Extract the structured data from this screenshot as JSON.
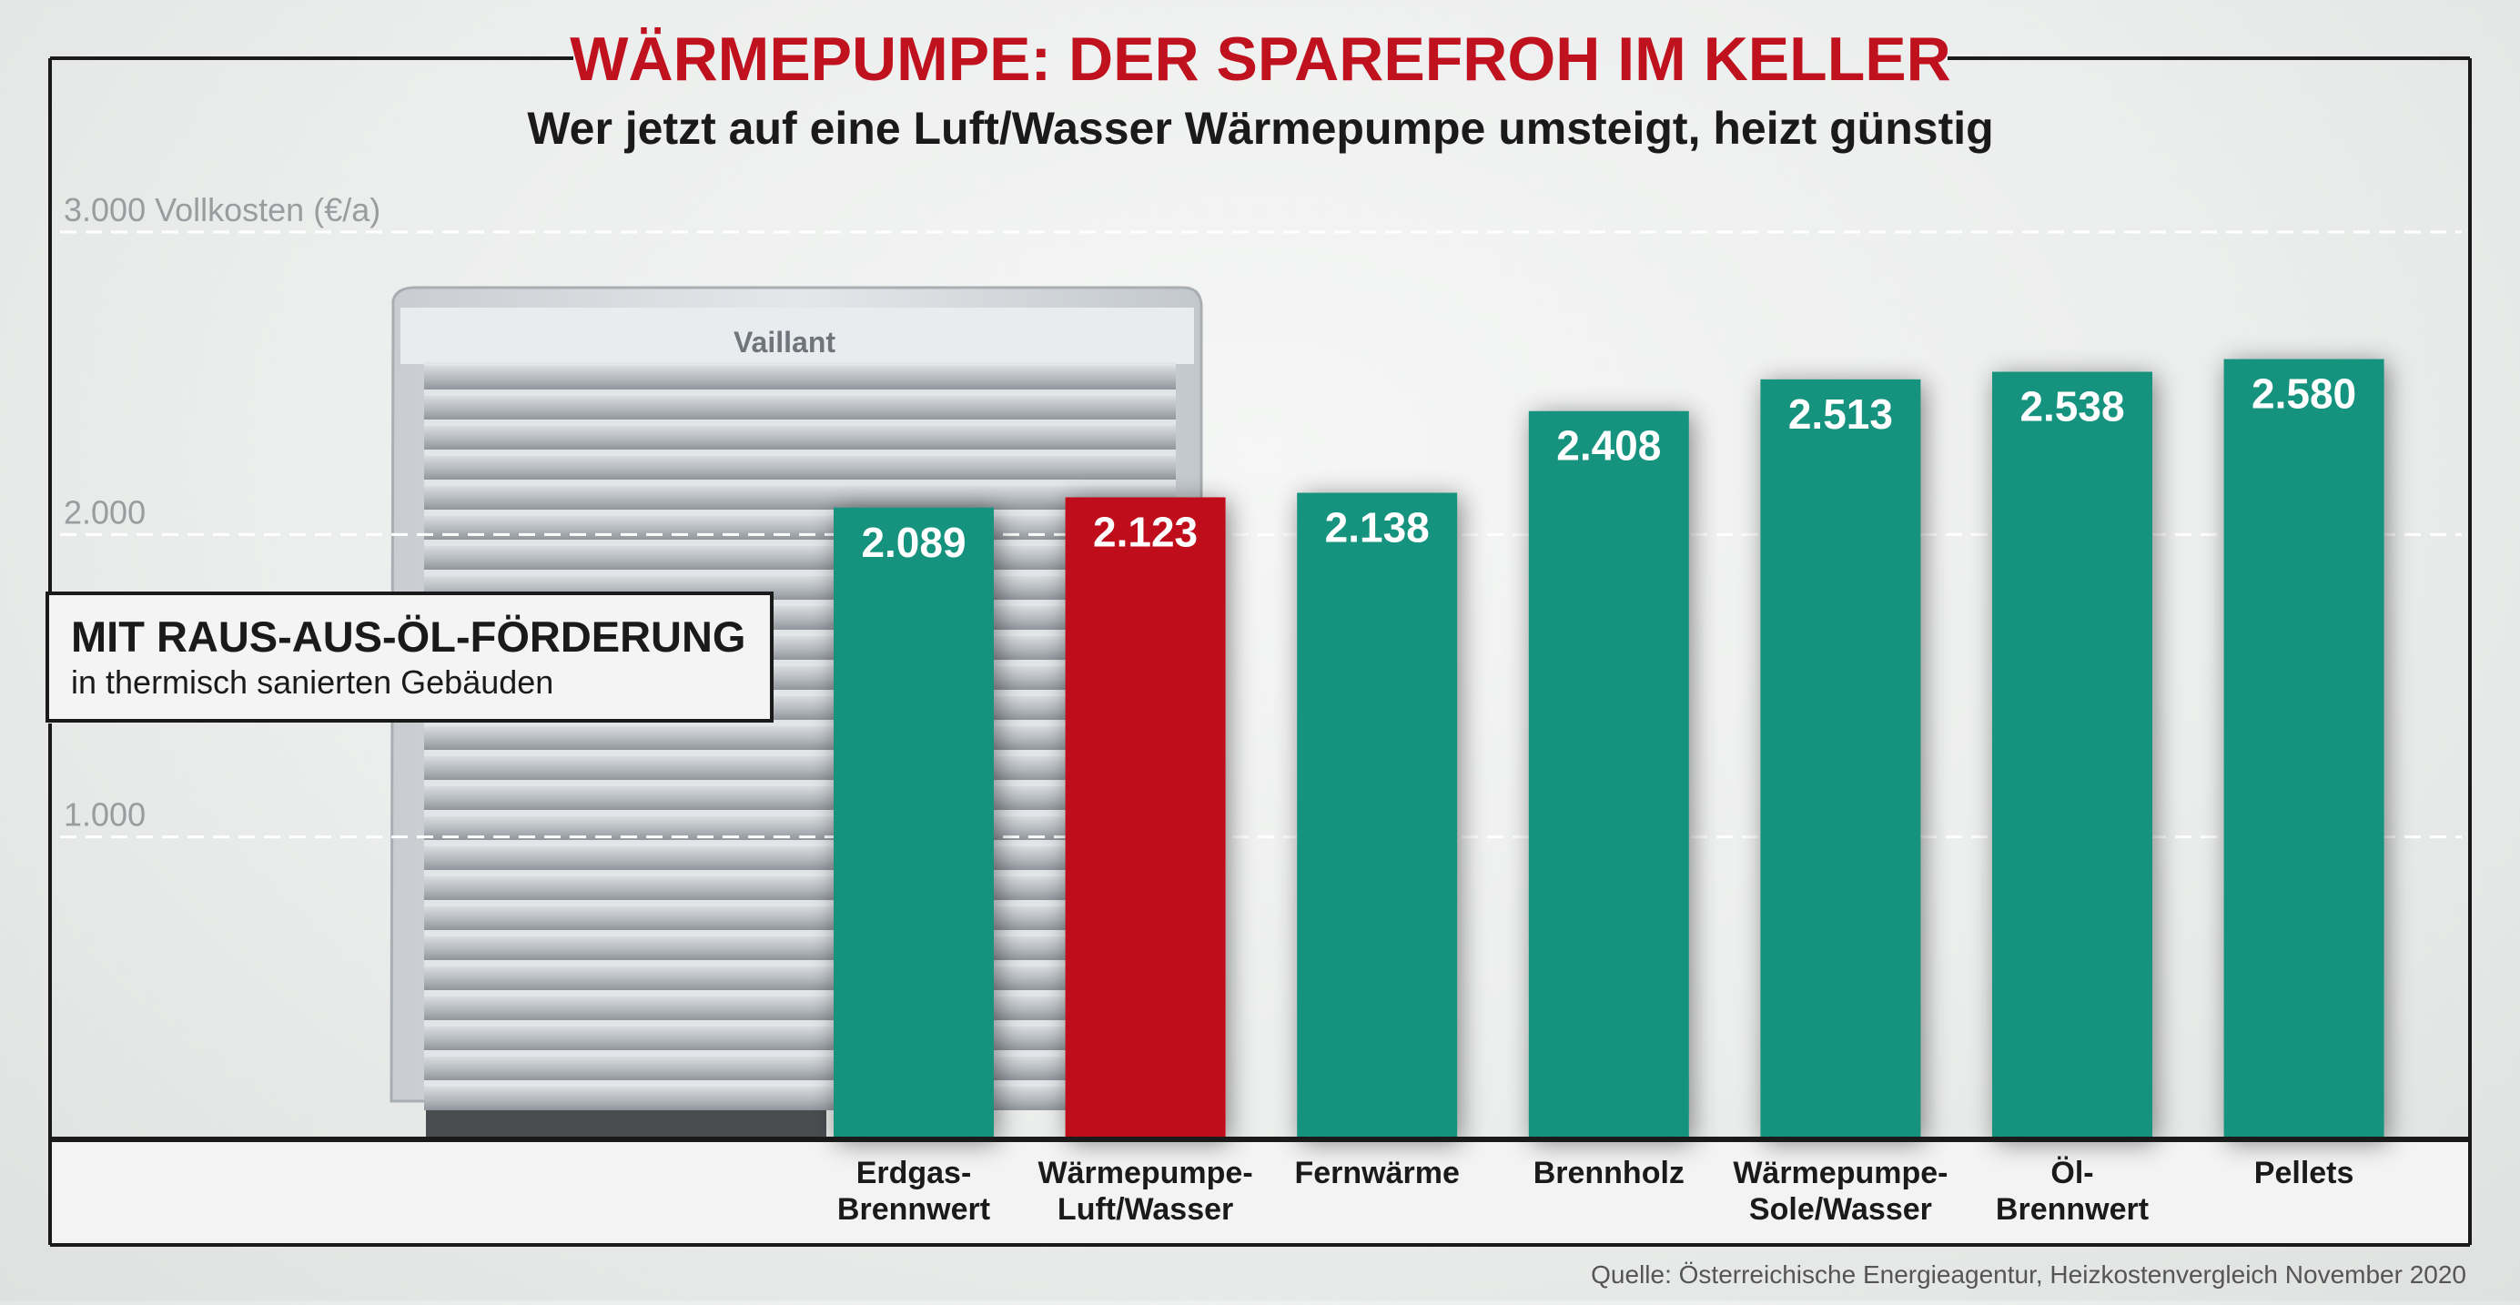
{
  "title": "WÄRMEPUMPE: DER SPAREFROH IM KELLER",
  "subtitle": "Wer jetzt auf eine Luft/Wasser Wärmepumpe umsteigt, heizt günstig",
  "callout": {
    "heading": "MIT RAUS-AUS-ÖL-FÖRDERUNG",
    "text": "in thermisch sanierten Gebäuden"
  },
  "product_brand": "Vaillant",
  "source": "Quelle: Österreichische Energieagentur, Heizkostenvergleich November 2020",
  "colors": {
    "title": "#c0111f",
    "bar_default": "#15937e",
    "bar_highlight": "#c0111f"
  },
  "chart_data": {
    "type": "bar",
    "title": "WÄRMEPUMPE: DER SPAREFROH IM KELLER",
    "subtitle": "Wer jetzt auf eine Luft/Wasser Wärmepumpe umsteigt, heizt günstig",
    "xlabel": "",
    "ylabel": "Vollkosten (€/a)",
    "ylim": [
      0,
      3000
    ],
    "yticks": [
      {
        "value": 1000,
        "label": "1.000"
      },
      {
        "value": 2000,
        "label": "2.000"
      },
      {
        "value": 3000,
        "label": "3.000 Vollkosten (€/a)"
      }
    ],
    "grid": true,
    "categories": [
      "Erdgas-\nBrennwert",
      "Wärmepumpe-\nLuft/Wasser",
      "Fernwärme",
      "Brennholz",
      "Wärmepumpe-\nSole/Wasser",
      "Öl-\nBrennwert",
      "Pellets"
    ],
    "values": [
      2089,
      2123,
      2138,
      2408,
      2513,
      2538,
      2580
    ],
    "value_labels": [
      "2.089",
      "2.123",
      "2.138",
      "2.408",
      "2.513",
      "2.538",
      "2.580"
    ],
    "highlight_index": 1
  }
}
